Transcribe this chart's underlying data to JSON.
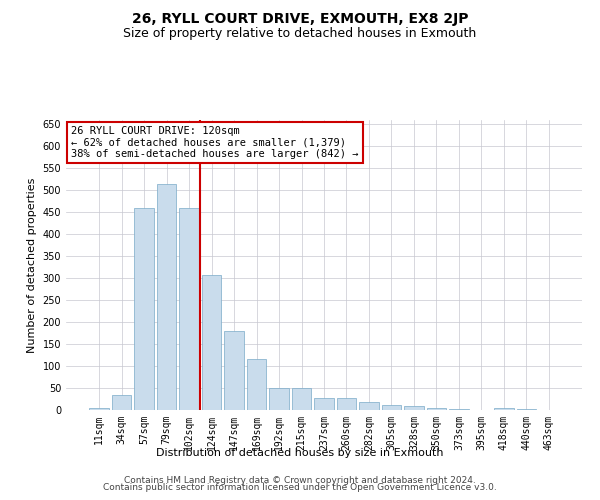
{
  "title": "26, RYLL COURT DRIVE, EXMOUTH, EX8 2JP",
  "subtitle": "Size of property relative to detached houses in Exmouth",
  "xlabel": "Distribution of detached houses by size in Exmouth",
  "ylabel": "Number of detached properties",
  "categories": [
    "11sqm",
    "34sqm",
    "57sqm",
    "79sqm",
    "102sqm",
    "124sqm",
    "147sqm",
    "169sqm",
    "192sqm",
    "215sqm",
    "237sqm",
    "260sqm",
    "282sqm",
    "305sqm",
    "328sqm",
    "350sqm",
    "373sqm",
    "395sqm",
    "418sqm",
    "440sqm",
    "463sqm"
  ],
  "values": [
    5,
    35,
    460,
    515,
    460,
    307,
    180,
    115,
    50,
    50,
    27,
    27,
    18,
    12,
    8,
    4,
    2,
    1,
    4,
    2,
    1
  ],
  "bar_color": "#c9dcec",
  "bar_edge_color": "#7aaac8",
  "vline_x_index": 5,
  "vline_color": "#cc0000",
  "annotation_line1": "26 RYLL COURT DRIVE: 120sqm",
  "annotation_line2": "← 62% of detached houses are smaller (1,379)",
  "annotation_line3": "38% of semi-detached houses are larger (842) →",
  "annotation_box_color": "#ffffff",
  "annotation_box_edge": "#cc0000",
  "ylim": [
    0,
    660
  ],
  "yticks": [
    0,
    50,
    100,
    150,
    200,
    250,
    300,
    350,
    400,
    450,
    500,
    550,
    600,
    650
  ],
  "footer_line1": "Contains HM Land Registry data © Crown copyright and database right 2024.",
  "footer_line2": "Contains public sector information licensed under the Open Government Licence v3.0.",
  "bg_color": "#ffffff",
  "grid_color": "#c8c8d0",
  "title_fontsize": 10,
  "subtitle_fontsize": 9,
  "axis_label_fontsize": 8,
  "tick_fontsize": 7,
  "footer_fontsize": 6.5,
  "annot_fontsize": 7.5
}
